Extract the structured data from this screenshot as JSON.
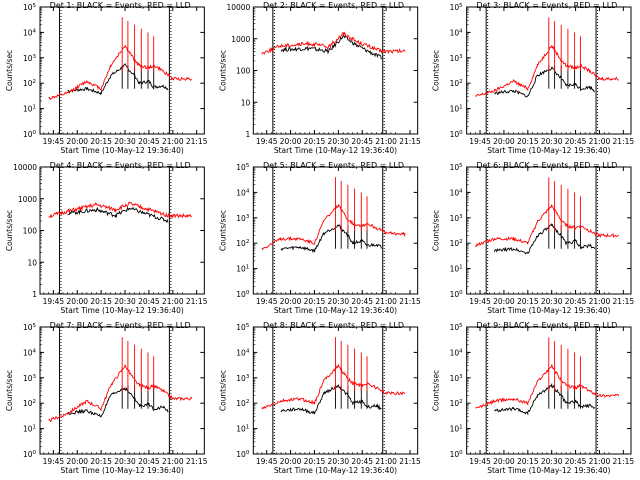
{
  "x_ticks": [
    "19:45",
    "20:00",
    "20:15",
    "20:30",
    "20:45",
    "21:00",
    "21:15"
  ],
  "xlabel": "Start Time (10-May-12 19:36:40)",
  "ylabel": "Counts/sec",
  "colors": {
    "events": "#000000",
    "lld": "#ff0000"
  },
  "chart_data": [
    {
      "type": "line",
      "title": "Det 1: BLACK = Events, RED = LLD",
      "xlabel": "Start Time (10-May-12 19:36:40)",
      "ylabel": "Counts/sec",
      "y_scale": "log",
      "ylim": [
        1,
        100000
      ],
      "y_ticks": [
        "10^0",
        "10^1",
        "10^2",
        "10^3",
        "10^4",
        "10^5"
      ],
      "shape": "spiky",
      "series": [
        {
          "name": "Events",
          "color": "#000000",
          "x": [
            19.9,
            20.1,
            20.25,
            20.35,
            20.5,
            20.6,
            20.65,
            20.75,
            20.8,
            20.9,
            20.95
          ],
          "values": [
            50,
            60,
            40,
            200,
            500,
            200,
            100,
            120,
            70,
            80,
            60
          ]
        },
        {
          "name": "LLD",
          "color": "#ff0000",
          "x": [
            19.7,
            19.9,
            20.1,
            20.25,
            20.35,
            20.5,
            20.6,
            20.65,
            20.75,
            20.8,
            20.9,
            21.0,
            21.2
          ],
          "values": [
            25,
            40,
            120,
            60,
            500,
            3000,
            800,
            500,
            400,
            500,
            300,
            150,
            150
          ]
        }
      ]
    },
    {
      "type": "line",
      "title": "Det 2: BLACK = Events, RED = LLD",
      "xlabel": "Start Time (10-May-12 19:36:40)",
      "ylabel": "Counts/sec",
      "y_scale": "log",
      "ylim": [
        1,
        10000
      ],
      "y_ticks": [
        "1",
        "10",
        "100",
        "1000",
        "10000"
      ],
      "shape": "smooth",
      "series": [
        {
          "name": "Events",
          "color": "#000000",
          "x": [
            19.9,
            20.2,
            20.4,
            20.55,
            20.7,
            20.95
          ],
          "values": [
            450,
            500,
            400,
            1200,
            600,
            250
          ]
        },
        {
          "name": "LLD",
          "color": "#ff0000",
          "x": [
            19.7,
            19.9,
            20.2,
            20.4,
            20.55,
            20.7,
            20.95,
            21.2
          ],
          "values": [
            350,
            600,
            700,
            550,
            1500,
            800,
            400,
            400
          ]
        }
      ]
    },
    {
      "type": "line",
      "title": "Det 3: BLACK = Events, RED = LLD",
      "xlabel": "Start Time (10-May-12 19:36:40)",
      "ylabel": "Counts/sec",
      "y_scale": "log",
      "ylim": [
        1,
        100000
      ],
      "y_ticks": [
        "10^0",
        "10^1",
        "10^2",
        "10^3",
        "10^4",
        "10^5"
      ],
      "shape": "spiky",
      "series": [
        {
          "name": "Events",
          "color": "#000000",
          "x": [
            19.9,
            20.1,
            20.25,
            20.35,
            20.5,
            20.6,
            20.65,
            20.75,
            20.8,
            20.9,
            20.95
          ],
          "values": [
            40,
            50,
            30,
            200,
            400,
            150,
            80,
            90,
            60,
            70,
            50
          ]
        },
        {
          "name": "LLD",
          "color": "#ff0000",
          "x": [
            19.7,
            19.9,
            20.1,
            20.25,
            20.35,
            20.5,
            20.6,
            20.65,
            20.75,
            20.8,
            20.9,
            21.0,
            21.2
          ],
          "values": [
            30,
            50,
            120,
            60,
            500,
            3000,
            800,
            500,
            400,
            500,
            300,
            150,
            150
          ]
        }
      ]
    },
    {
      "type": "line",
      "title": "Det 4: BLACK = Events, RED = LLD",
      "xlabel": "Start Time (10-May-12 19:36:40)",
      "ylabel": "Counts/sec",
      "y_scale": "log",
      "ylim": [
        1,
        10000
      ],
      "y_ticks": [
        "1",
        "10",
        "100",
        "1000",
        "10000"
      ],
      "shape": "smooth",
      "series": [
        {
          "name": "Events",
          "color": "#000000",
          "x": [
            19.9,
            20.2,
            20.4,
            20.55,
            20.7,
            20.95
          ],
          "values": [
            350,
            450,
            300,
            500,
            350,
            200
          ]
        },
        {
          "name": "LLD",
          "color": "#ff0000",
          "x": [
            19.7,
            19.9,
            20.2,
            20.4,
            20.55,
            20.7,
            20.95,
            21.2
          ],
          "values": [
            280,
            400,
            650,
            450,
            700,
            500,
            300,
            280
          ]
        }
      ]
    },
    {
      "type": "line",
      "title": "Det 5: BLACK = Events, RED = LLD",
      "xlabel": "Start Time (10-May-12 19:36:40)",
      "ylabel": "Counts/sec",
      "y_scale": "log",
      "ylim": [
        1,
        100000
      ],
      "y_ticks": [
        "10^0",
        "10^1",
        "10^2",
        "10^3",
        "10^4",
        "10^5"
      ],
      "shape": "spiky",
      "series": [
        {
          "name": "Events",
          "color": "#000000",
          "x": [
            19.9,
            20.1,
            20.25,
            20.35,
            20.5,
            20.6,
            20.65,
            20.75,
            20.8,
            20.9,
            20.95
          ],
          "values": [
            60,
            70,
            50,
            250,
            500,
            200,
            100,
            120,
            80,
            90,
            70
          ]
        },
        {
          "name": "LLD",
          "color": "#ff0000",
          "x": [
            19.7,
            19.9,
            20.1,
            20.25,
            20.35,
            20.5,
            20.6,
            20.65,
            20.75,
            20.8,
            20.9,
            21.0,
            21.2
          ],
          "values": [
            60,
            150,
            150,
            100,
            800,
            3000,
            900,
            600,
            500,
            600,
            400,
            250,
            230
          ]
        }
      ]
    },
    {
      "type": "line",
      "title": "Det 6: BLACK = Events, RED = LLD",
      "xlabel": "Start Time (10-May-12 19:36:40)",
      "ylabel": "Counts/sec",
      "y_scale": "log",
      "ylim": [
        1,
        100000
      ],
      "y_ticks": [
        "10^0",
        "10^1",
        "10^2",
        "10^3",
        "10^4",
        "10^5"
      ],
      "shape": "spiky",
      "series": [
        {
          "name": "Events",
          "color": "#000000",
          "x": [
            19.9,
            20.1,
            20.25,
            20.35,
            20.5,
            20.6,
            20.65,
            20.75,
            20.8,
            20.9,
            20.95
          ],
          "values": [
            50,
            60,
            40,
            200,
            500,
            200,
            100,
            120,
            70,
            80,
            60
          ]
        },
        {
          "name": "LLD",
          "color": "#ff0000",
          "x": [
            19.7,
            19.9,
            20.1,
            20.25,
            20.35,
            20.5,
            20.6,
            20.65,
            20.75,
            20.8,
            20.9,
            21.0,
            21.2
          ],
          "values": [
            80,
            150,
            150,
            100,
            700,
            3000,
            800,
            500,
            400,
            500,
            300,
            200,
            200
          ]
        }
      ]
    },
    {
      "type": "line",
      "title": "Det 7: BLACK = Events, RED = LLD",
      "xlabel": "Start Time (10-May-12 19:36:40)",
      "ylabel": "Counts/sec",
      "y_scale": "log",
      "ylim": [
        1,
        100000
      ],
      "y_ticks": [
        "10^0",
        "10^1",
        "10^2",
        "10^3",
        "10^4",
        "10^5"
      ],
      "shape": "spiky",
      "series": [
        {
          "name": "Events",
          "color": "#000000",
          "x": [
            19.9,
            20.1,
            20.25,
            20.35,
            20.5,
            20.6,
            20.65,
            20.75,
            20.8,
            20.9,
            20.95
          ],
          "values": [
            40,
            50,
            30,
            200,
            400,
            150,
            80,
            90,
            60,
            70,
            50
          ]
        },
        {
          "name": "LLD",
          "color": "#ff0000",
          "x": [
            19.7,
            19.9,
            20.1,
            20.25,
            20.35,
            20.5,
            20.6,
            20.65,
            20.75,
            20.8,
            20.9,
            21.0,
            21.2
          ],
          "values": [
            20,
            40,
            120,
            60,
            500,
            3000,
            800,
            500,
            400,
            500,
            300,
            150,
            150
          ]
        }
      ]
    },
    {
      "type": "line",
      "title": "Det 8: BLACK = Events, RED = LLD",
      "xlabel": "Start Time (10-May-12 19:36:40)",
      "ylabel": "Counts/sec",
      "y_scale": "log",
      "ylim": [
        1,
        100000
      ],
      "y_ticks": [
        "10^0",
        "10^1",
        "10^2",
        "10^3",
        "10^4",
        "10^5"
      ],
      "shape": "spiky",
      "series": [
        {
          "name": "Events",
          "color": "#000000",
          "x": [
            19.9,
            20.1,
            20.25,
            20.35,
            20.5,
            20.6,
            20.65,
            20.75,
            20.8,
            20.9,
            20.95
          ],
          "values": [
            50,
            60,
            40,
            250,
            500,
            200,
            100,
            120,
            70,
            80,
            60
          ]
        },
        {
          "name": "LLD",
          "color": "#ff0000",
          "x": [
            19.7,
            19.9,
            20.1,
            20.25,
            20.35,
            20.5,
            20.6,
            20.65,
            20.75,
            20.8,
            20.9,
            21.0,
            21.2
          ],
          "values": [
            60,
            120,
            150,
            100,
            800,
            3000,
            900,
            600,
            500,
            600,
            400,
            250,
            250
          ]
        }
      ]
    },
    {
      "type": "line",
      "title": "Det 9: BLACK = Events, RED = LLD",
      "xlabel": "Start Time (10-May-12 19:36:40)",
      "ylabel": "Counts/sec",
      "y_scale": "log",
      "ylim": [
        1,
        100000
      ],
      "y_ticks": [
        "10^0",
        "10^1",
        "10^2",
        "10^3",
        "10^4",
        "10^5"
      ],
      "shape": "spiky",
      "series": [
        {
          "name": "Events",
          "color": "#000000",
          "x": [
            19.9,
            20.1,
            20.25,
            20.35,
            20.5,
            20.6,
            20.65,
            20.75,
            20.8,
            20.9,
            20.95
          ],
          "values": [
            50,
            60,
            40,
            200,
            500,
            200,
            100,
            120,
            70,
            80,
            60
          ]
        },
        {
          "name": "LLD",
          "color": "#ff0000",
          "x": [
            19.7,
            19.9,
            20.1,
            20.25,
            20.35,
            20.5,
            20.6,
            20.65,
            20.75,
            20.8,
            20.9,
            21.0,
            21.2
          ],
          "values": [
            60,
            120,
            150,
            100,
            700,
            3000,
            800,
            500,
            400,
            500,
            300,
            200,
            200
          ]
        }
      ]
    }
  ]
}
